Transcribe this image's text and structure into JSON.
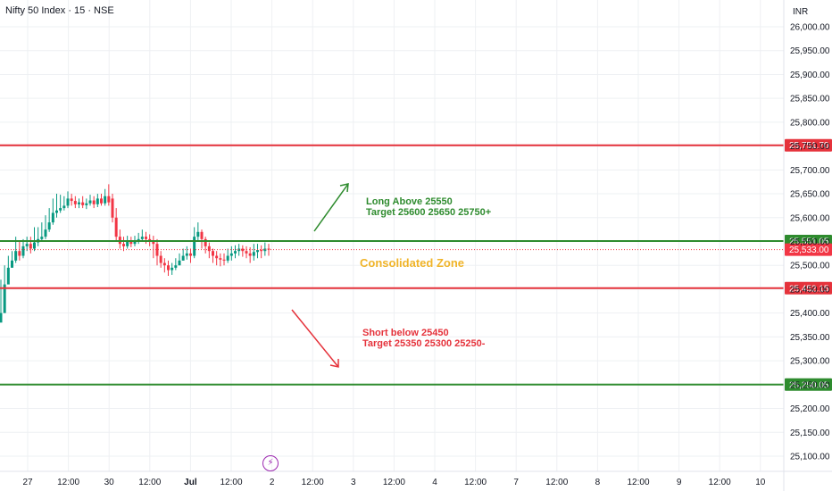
{
  "header": {
    "symbol_title": "Nifty 50 Index · 15 · NSE",
    "currency": "INR"
  },
  "events": {
    "icon": "lightning-icon"
  },
  "colors": {
    "bull": "#089981",
    "bear": "#f23645",
    "support_line": "#2e8b2e",
    "resistance_line": "#e5323b",
    "zone_text": "#f0b429",
    "long_text": "#2e8b2e",
    "short_text": "#e5323b",
    "grid": "#eef0f3"
  },
  "chart_data": {
    "type": "candlestick",
    "interval": "15",
    "ylim": [
      25075,
      26025
    ],
    "y_ticks": [
      "26,000.00",
      "25,950.00",
      "25,900.00",
      "25,850.00",
      "25,800.00",
      "25,750.00",
      "25,700.00",
      "25,650.00",
      "25,600.00",
      "25,550.00",
      "25,500.00",
      "25,450.00",
      "25,400.00",
      "25,350.00",
      "25,300.00",
      "25,250.00",
      "25,200.00",
      "25,150.00",
      "25,100.00"
    ],
    "x_ticks": [
      "27",
      "12:00",
      "30",
      "12:00",
      "Jul",
      "12:00",
      "2",
      "12:00",
      "3",
      "12:00",
      "4",
      "12:00",
      "7",
      "12:00",
      "8",
      "12:00",
      "9",
      "12:00",
      "10"
    ],
    "levels": [
      {
        "label": "25,751.70",
        "value": 25751.7,
        "kind": "resistance"
      },
      {
        "label": "25,551.05",
        "value": 25551.05,
        "kind": "support"
      },
      {
        "label": "25,533.00",
        "value": 25533.0,
        "kind": "last_price"
      },
      {
        "label": "25,452.15",
        "value": 25452.15,
        "kind": "resistance"
      },
      {
        "label": "25,250.05",
        "value": 25250.05,
        "kind": "support"
      }
    ],
    "annotations": {
      "long": [
        "Long  Above 25550",
        "Target 25600 25650 25750+"
      ],
      "zone": "Consolidated Zone",
      "short": [
        "Short  below 25450",
        "Target 25350 25300 25250-"
      ]
    },
    "closes": [
      25400,
      25460,
      25495,
      25510,
      25530,
      25520,
      25540,
      25545,
      25535,
      25548,
      25555,
      25560,
      25575,
      25590,
      25610,
      25615,
      25620,
      25625,
      25640,
      25635,
      25628,
      25632,
      25626,
      25630,
      25636,
      25628,
      25640,
      25630,
      25645,
      25632,
      25600,
      25560,
      25545,
      25540,
      25550,
      25545,
      25550,
      25555,
      25560,
      25555,
      25550,
      25545,
      25520,
      25505,
      25500,
      25490,
      25495,
      25500,
      25510,
      25520,
      25525,
      25520,
      25560,
      25570,
      25555,
      25540,
      25530,
      25520,
      25515,
      25512,
      25510,
      25520,
      25525,
      25530,
      25535,
      25530,
      25525,
      25520,
      25528,
      25532,
      25530,
      25535,
      25533
    ],
    "opens": [
      25380,
      25400,
      25460,
      25495,
      25510,
      25530,
      25520,
      25540,
      25545,
      25535,
      25548,
      25555,
      25560,
      25575,
      25590,
      25610,
      25615,
      25620,
      25625,
      25640,
      25635,
      25628,
      25632,
      25626,
      25630,
      25636,
      25628,
      25640,
      25630,
      25645,
      25640,
      25600,
      25560,
      25545,
      25540,
      25550,
      25545,
      25550,
      25555,
      25560,
      25555,
      25550,
      25545,
      25520,
      25505,
      25500,
      25490,
      25495,
      25500,
      25510,
      25520,
      25525,
      25520,
      25560,
      25570,
      25555,
      25540,
      25530,
      25520,
      25515,
      25512,
      25510,
      25520,
      25525,
      25530,
      25535,
      25530,
      25525,
      25520,
      25528,
      25532,
      25530,
      25535
    ],
    "highs": [
      25470,
      25500,
      25520,
      25530,
      25560,
      25550,
      25555,
      25560,
      25560,
      25580,
      25580,
      25590,
      25605,
      25620,
      25640,
      25650,
      25648,
      25645,
      25655,
      25650,
      25645,
      25640,
      25645,
      25640,
      25648,
      25645,
      25650,
      25650,
      25660,
      25670,
      25650,
      25620,
      25575,
      25560,
      25562,
      25560,
      25562,
      25568,
      25575,
      25570,
      25565,
      25562,
      25555,
      25530,
      25515,
      25510,
      25505,
      25515,
      25525,
      25535,
      25540,
      25535,
      25580,
      25590,
      25575,
      25560,
      25548,
      25535,
      25530,
      25525,
      25525,
      25535,
      25540,
      25542,
      25545,
      25542,
      25540,
      25538,
      25545,
      25545,
      25542,
      25548,
      25545
    ],
    "lows": [
      25390,
      25440,
      25485,
      25495,
      25505,
      25510,
      25515,
      25530,
      25525,
      25530,
      25540,
      25550,
      25555,
      25570,
      25585,
      25600,
      25610,
      25615,
      25620,
      25625,
      25620,
      25620,
      25620,
      25618,
      25625,
      25620,
      25622,
      25625,
      25625,
      25625,
      25590,
      25550,
      25535,
      25530,
      25535,
      25538,
      25540,
      25545,
      25550,
      25545,
      25540,
      25515,
      25500,
      25495,
      25485,
      25478,
      25480,
      25490,
      25500,
      25510,
      25512,
      25505,
      25515,
      25550,
      25535,
      25525,
      25515,
      25505,
      25500,
      25498,
      25500,
      25505,
      25510,
      25515,
      25520,
      25518,
      25515,
      25505,
      25510,
      25515,
      25515,
      25520,
      25520
    ]
  }
}
